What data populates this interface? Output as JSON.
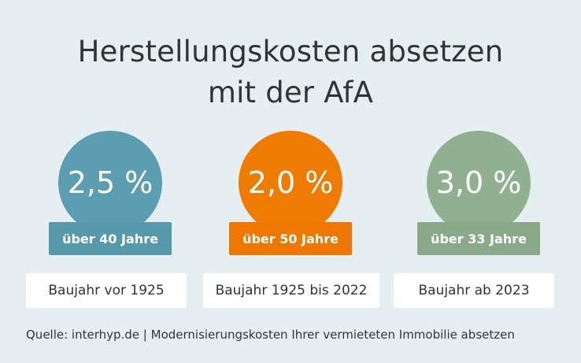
{
  "header": {
    "title_lines": [
      "Herstellungskosten absetzen",
      "mit der AfA"
    ]
  },
  "items": [
    {
      "rate": "2,5 %",
      "duration": "über 40 Jahre",
      "period": "Baujahr vor 1925"
    },
    {
      "rate": "2,0 %",
      "duration": "über 50 Jahre",
      "period": "Baujahr 1925 bis 2022"
    },
    {
      "rate": "3,0 %",
      "duration": "über 33 Jahre",
      "period": "Baujahr ab 2023"
    }
  ],
  "footer": {
    "source": "Quelle: interhyp.de | Modernisierungskosten Ihrer vermieteten Immobilie absetzen"
  }
}
